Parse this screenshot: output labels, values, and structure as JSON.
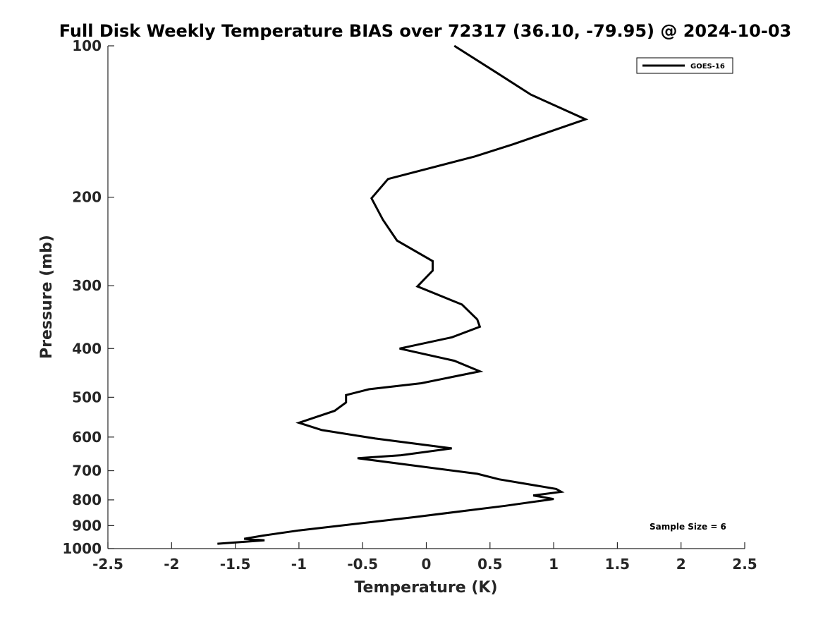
{
  "chart_data": {
    "type": "line",
    "title": "Full Disk Weekly Temperature BIAS over 72317 (36.10, -79.95) @ 2024-10-03",
    "xlabel": "Temperature (K)",
    "ylabel": "Pressure (mb)",
    "xlim": [
      -2.5,
      2.5
    ],
    "ylim": [
      100,
      1000
    ],
    "y_scale": "log",
    "y_reversed": true,
    "x_ticks": [
      "-2.5",
      "-2",
      "-1.5",
      "-1",
      "-0.5",
      "0",
      "0.5",
      "1",
      "1.5",
      "2",
      "2.5"
    ],
    "y_ticks": [
      "100",
      "200",
      "300",
      "400",
      "500",
      "600",
      "700",
      "800",
      "900",
      "1000"
    ],
    "grid": false,
    "legend_position": "top-right",
    "series": [
      {
        "name": "GOES-16",
        "color": "#000000",
        "points": [
          [
            0.22,
            100
          ],
          [
            0.55,
            113
          ],
          [
            0.82,
            125
          ],
          [
            1.25,
            140
          ],
          [
            0.68,
            157
          ],
          [
            0.38,
            166
          ],
          [
            -0.3,
            184
          ],
          [
            -0.43,
            201
          ],
          [
            -0.34,
            222
          ],
          [
            -0.23,
            244
          ],
          [
            0.05,
            268
          ],
          [
            0.05,
            280
          ],
          [
            -0.07,
            301
          ],
          [
            0.28,
            327
          ],
          [
            0.4,
            350
          ],
          [
            0.42,
            362
          ],
          [
            0.2,
            380
          ],
          [
            -0.21,
            400
          ],
          [
            0.22,
            423
          ],
          [
            0.42,
            444
          ],
          [
            -0.04,
            469
          ],
          [
            -0.45,
            482
          ],
          [
            -0.63,
            495
          ],
          [
            -0.63,
            512
          ],
          [
            -0.72,
            532
          ],
          [
            -1.0,
            562
          ],
          [
            -0.82,
            581
          ],
          [
            -0.4,
            604
          ],
          [
            0.2,
            632
          ],
          [
            -0.2,
            652
          ],
          [
            -0.54,
            661
          ],
          [
            0.4,
            710
          ],
          [
            0.57,
            728
          ],
          [
            1.02,
            761
          ],
          [
            1.06,
            771
          ],
          [
            0.84,
            784
          ],
          [
            1.0,
            797
          ],
          [
            0.62,
            822
          ],
          [
            -0.1,
            866
          ],
          [
            -1.0,
            920
          ],
          [
            -1.28,
            942
          ],
          [
            -1.43,
            956
          ],
          [
            -1.27,
            963
          ],
          [
            -1.64,
            978
          ]
        ]
      }
    ],
    "annotations": [
      "Sample Size = 6"
    ]
  }
}
